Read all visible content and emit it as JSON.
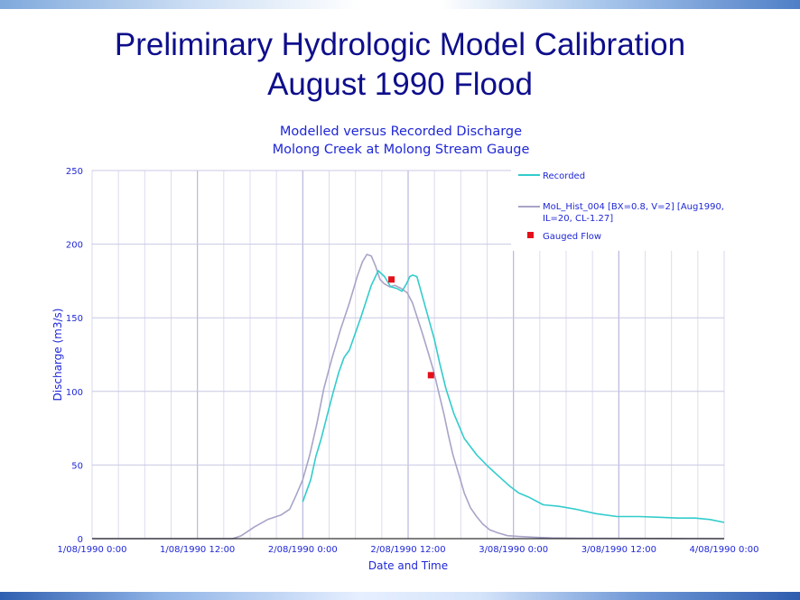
{
  "page": {
    "title_line1": "Preliminary Hydrologic Model Calibration",
    "title_line2": "August 1990 Flood"
  },
  "colors": {
    "recorded": "#33cccc",
    "modelled": "#a8a4c8",
    "gauged": "#e3101a",
    "text": "#1f27d6",
    "title": "#0e0e8c",
    "grid": "#dcdcf0"
  },
  "chart_data": {
    "type": "line",
    "title_line1": "Modelled versus Recorded Discharge",
    "title_line2": "Molong Creek at Molong Stream Gauge",
    "xlabel": "Date and Time",
    "ylabel": "Discharge (m3/s)",
    "x_unit": "hours from 1/08/1990 0:00",
    "xlim": [
      0,
      72
    ],
    "ylim": [
      0,
      250
    ],
    "yticks": [
      0,
      50,
      100,
      150,
      200,
      250
    ],
    "xticks": [
      {
        "value": 0,
        "label": "1/08/1990 0:00"
      },
      {
        "value": 12,
        "label": "1/08/1990 12:00"
      },
      {
        "value": 24,
        "label": "2/08/1990 0:00"
      },
      {
        "value": 36,
        "label": "2/08/1990 12:00"
      },
      {
        "value": 48,
        "label": "3/08/1990 0:00"
      },
      {
        "value": 60,
        "label": "3/08/1990 12:00"
      },
      {
        "value": 72,
        "label": "4/08/1990 0:00"
      }
    ],
    "grid": true,
    "legend_position": "top-right",
    "series": [
      {
        "name": "Recorded",
        "style": "line",
        "x": [
          24,
          24.9,
          25.5,
          26.1,
          26.7,
          27.4,
          28.1,
          28.7,
          29.3,
          30.6,
          31.8,
          32.6,
          33.3,
          34.0,
          34.7,
          35.3,
          35.8,
          36.2,
          36.5,
          37.0,
          37.6,
          38.3,
          39.0,
          39.6,
          40.3,
          41.2,
          42.4,
          43.8,
          45.1,
          46.2,
          47.5,
          48.6,
          49.8,
          51.4,
          53.1,
          55.1,
          57.4,
          59.8,
          62.3,
          64.6,
          66.7,
          68.7,
          70.4,
          72.0
        ],
        "y": [
          25,
          40,
          56,
          68,
          82,
          98,
          113,
          123,
          128,
          150,
          172,
          182,
          178,
          171,
          170,
          168,
          173,
          178,
          179,
          178,
          165,
          150,
          135,
          119,
          102,
          85,
          68,
          57,
          49,
          43,
          36,
          31,
          28,
          23,
          22,
          20,
          17,
          15,
          15,
          14.5,
          14,
          14,
          13,
          11
        ]
      },
      {
        "name": "MoL_Hist_004 [BX=0.8, V=2] [Aug1990, IL=20, CL-1.27]",
        "style": "line",
        "x": [
          0,
          10,
          16,
          17,
          18.5,
          20,
          21.5,
          22.5,
          23.2,
          24.0,
          24.8,
          25.6,
          26.4,
          27.3,
          28.3,
          29.3,
          30.2,
          30.8,
          31.3,
          31.8,
          32.3,
          32.8,
          33.3,
          33.9,
          34.5,
          35.2,
          35.9,
          36.5,
          37.1,
          37.7,
          38.3,
          38.9,
          39.5,
          40.1,
          40.6,
          41.1,
          41.8,
          42.4,
          43.1,
          43.8,
          44.5,
          45.3,
          46.2,
          47.3,
          48.6,
          50.3,
          52.3,
          55.0,
          60.0,
          66.0,
          72.0
        ],
        "y": [
          0,
          0,
          0,
          2,
          8,
          13,
          16,
          20,
          29,
          40,
          57,
          78,
          102,
          122,
          142,
          160,
          178,
          188,
          193,
          192,
          185,
          176,
          173,
          171,
          172,
          170,
          167,
          160,
          149,
          138,
          126,
          114,
          99,
          84,
          70,
          57,
          43,
          31,
          21,
          15,
          10,
          6,
          4,
          2,
          1.5,
          1,
          0.5,
          0.3,
          0.2,
          0.1,
          0
        ]
      },
      {
        "name": "Gauged Flow",
        "style": "marker",
        "x": [
          34.1,
          38.6
        ],
        "y": [
          176,
          111
        ]
      }
    ]
  }
}
